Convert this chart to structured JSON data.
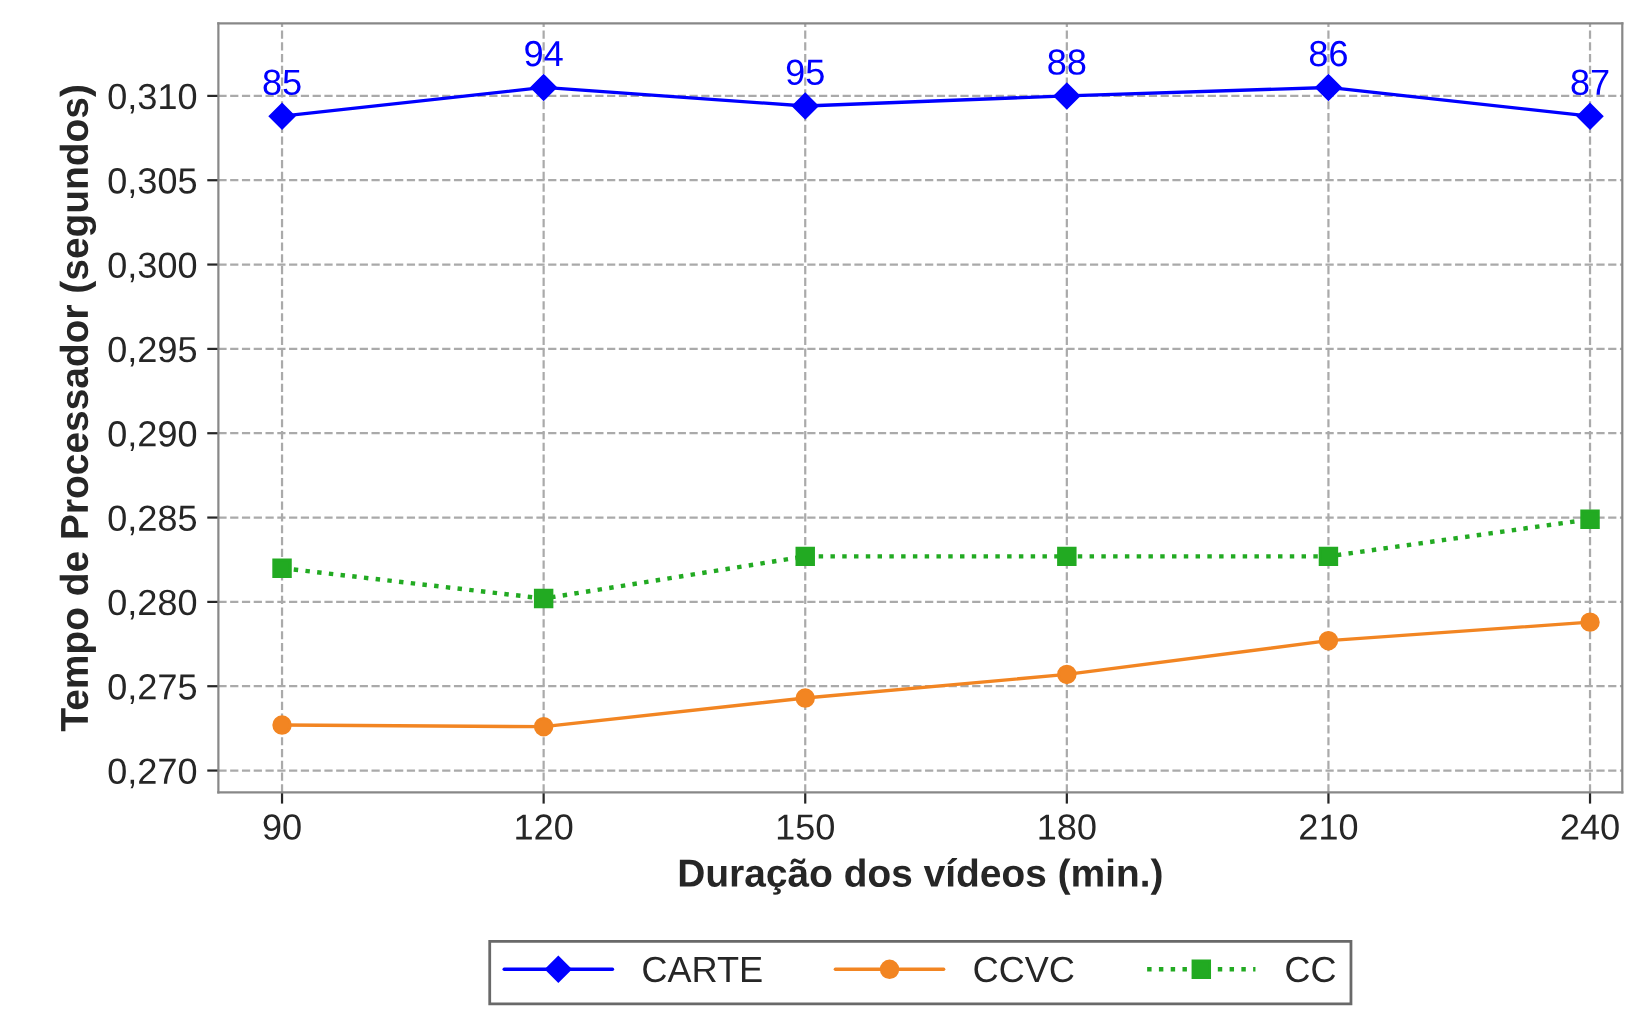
{
  "chart_data": {
    "type": "line",
    "xlabel": "Duração dos vídeos (min.)",
    "ylabel": "Tempo de Processador (segundos)",
    "x": [
      90,
      120,
      150,
      180,
      210,
      240
    ],
    "series": [
      {
        "name": "CARTE",
        "color": "#0000ff",
        "marker": "diamond",
        "line_style": "solid",
        "values": [
          0.3088,
          0.3105,
          0.3094,
          0.31,
          0.3105,
          0.3088
        ]
      },
      {
        "name": "CCVC",
        "color": "#f28522",
        "marker": "circle",
        "line_style": "solid",
        "values": [
          0.2727,
          0.2726,
          0.2743,
          0.2757,
          0.2777,
          0.2788
        ]
      },
      {
        "name": "CC",
        "color": "#22aa22",
        "marker": "square",
        "line_style": "dotted",
        "values": [
          0.282,
          0.2802,
          0.2827,
          0.2827,
          0.2827,
          0.2849
        ]
      }
    ],
    "xlim": [
      82.7,
      243.7
    ],
    "xticks": [
      90,
      120,
      150,
      180,
      210,
      240
    ],
    "ylim": [
      0.2687,
      0.3143
    ],
    "yticks": [
      {
        "value": 0.27,
        "label": "0,270"
      },
      {
        "value": 0.275,
        "label": "0,275"
      },
      {
        "value": 0.28,
        "label": "0,280"
      },
      {
        "value": 0.285,
        "label": "0,285"
      },
      {
        "value": 0.29,
        "label": "0,290"
      },
      {
        "value": 0.295,
        "label": "0,295"
      },
      {
        "value": 0.3,
        "label": "0,300"
      },
      {
        "value": 0.305,
        "label": "0,305"
      },
      {
        "value": 0.31,
        "label": "0,310"
      }
    ],
    "grid": true,
    "legend": "bottom",
    "annotations": [
      {
        "text": "85",
        "x": 90,
        "y": 0.3088
      },
      {
        "text": "94",
        "x": 120,
        "y": 0.3105
      },
      {
        "text": "95",
        "x": 150,
        "y": 0.3094
      },
      {
        "text": "88",
        "x": 180,
        "y": 0.31
      },
      {
        "text": "86",
        "x": 210,
        "y": 0.3105
      },
      {
        "text": "87",
        "x": 240,
        "y": 0.3088
      }
    ]
  }
}
